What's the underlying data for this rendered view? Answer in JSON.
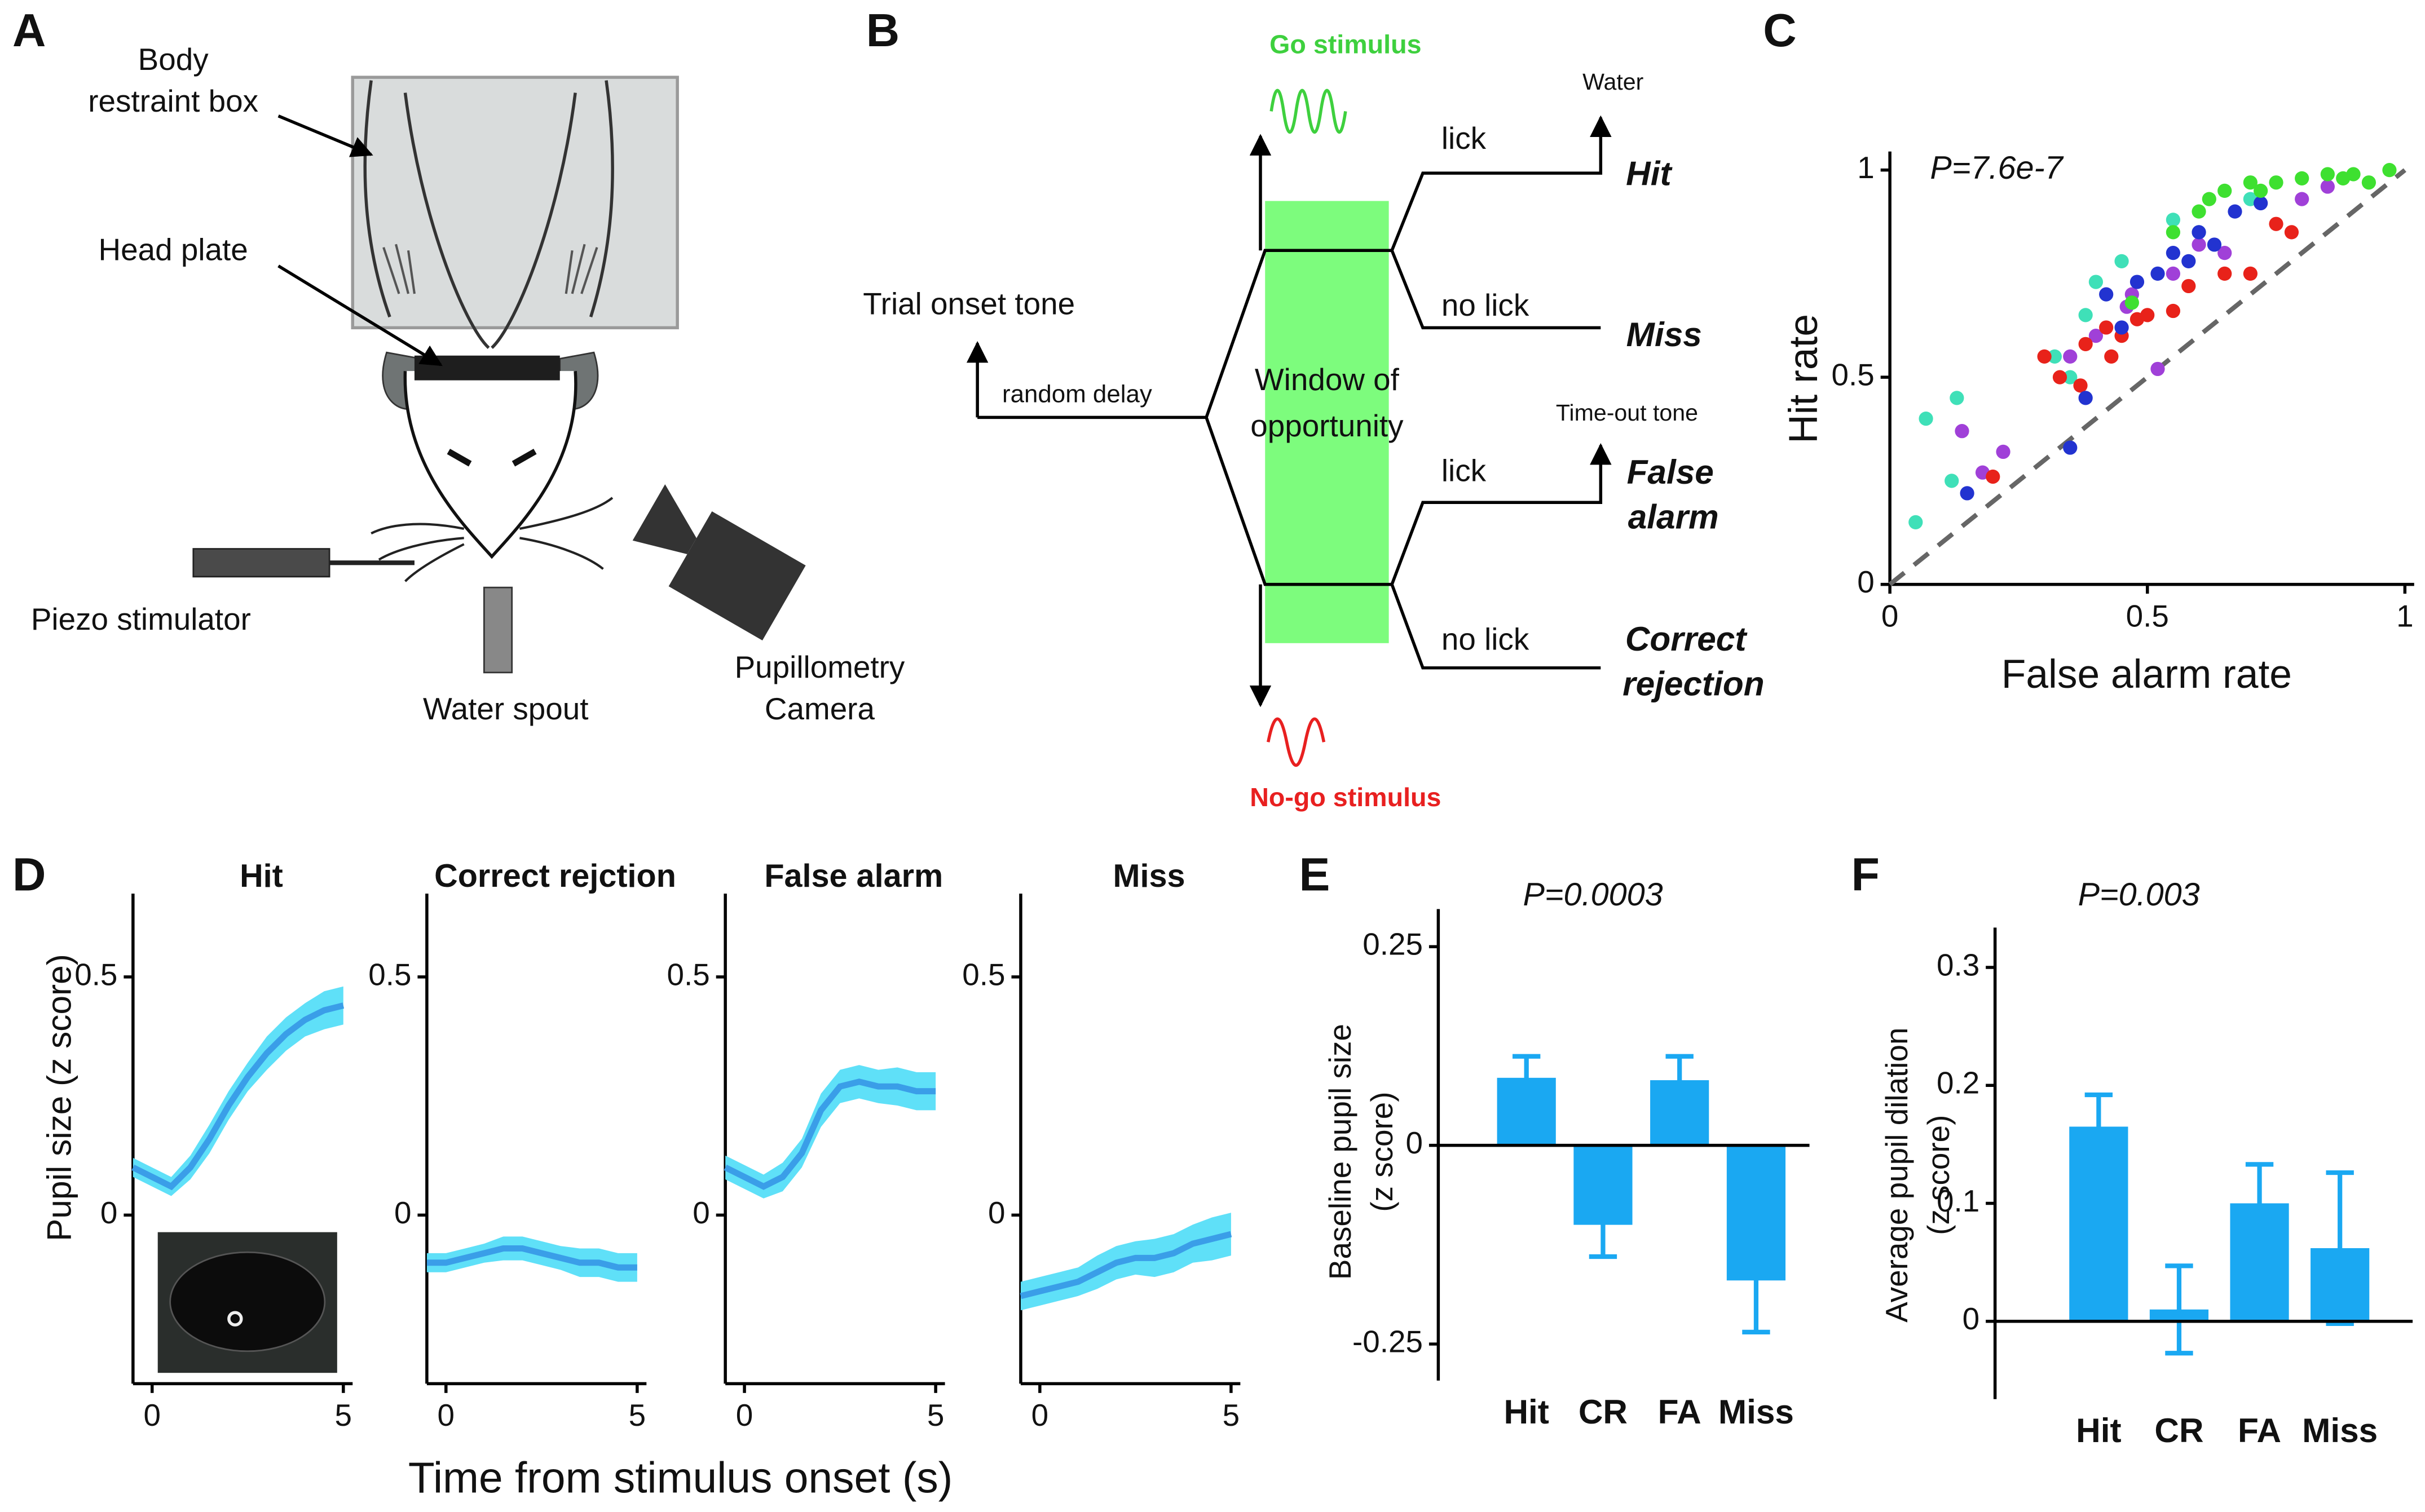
{
  "panel_a": {
    "label": "A",
    "body_box": [
      "Body",
      "restraint box"
    ],
    "head_plate": "Head plate",
    "piezo": "Piezo stimulator",
    "water_spout": "Water spout",
    "camera": [
      "Pupillometry",
      "Camera"
    ]
  },
  "panel_b": {
    "label": "B",
    "go": "Go stimulus",
    "nogo": "No-go stimulus",
    "trial_onset": "Trial onset tone",
    "delay": "random delay",
    "window": [
      "Window of",
      "opportunity"
    ],
    "lick_go": "lick",
    "nolick_go": "no lick",
    "lick_nogo": "lick",
    "nolick_nogo": "no lick",
    "water": "Water",
    "hit": "Hit",
    "miss": "Miss",
    "timeout": "Time-out tone",
    "false_alarm": [
      "False",
      "alarm"
    ],
    "correct_rejection": [
      "Correct",
      "rejection"
    ]
  },
  "chart_data": [
    {
      "type": "scatter",
      "label": "C",
      "annotation": "P=7.6e-7",
      "xlabel": "False alarm rate",
      "ylabel": "Hit rate",
      "xlim": [
        0,
        1
      ],
      "ylim": [
        0,
        1
      ],
      "xticks": [
        0,
        0.5,
        1
      ],
      "yticks": [
        0,
        0.5,
        1
      ],
      "series": [
        {
          "color": "#3fe0b8",
          "x": [
            0.05,
            0.07,
            0.13,
            0.12,
            0.32,
            0.35,
            0.4,
            0.45,
            0.55,
            0.6,
            0.38,
            0.7
          ],
          "values": [
            0.15,
            0.4,
            0.45,
            0.25,
            0.55,
            0.5,
            0.73,
            0.78,
            0.88,
            0.85,
            0.65,
            0.93
          ]
        },
        {
          "color": "#a040d8",
          "x": [
            0.14,
            0.18,
            0.22,
            0.35,
            0.4,
            0.47,
            0.55,
            0.6,
            0.65,
            0.8,
            0.85,
            0.52,
            0.46
          ],
          "values": [
            0.37,
            0.27,
            0.32,
            0.55,
            0.6,
            0.7,
            0.75,
            0.82,
            0.8,
            0.93,
            0.96,
            0.52,
            0.67
          ]
        },
        {
          "color": "#e8221a",
          "x": [
            0.2,
            0.3,
            0.33,
            0.38,
            0.42,
            0.45,
            0.48,
            0.5,
            0.55,
            0.58,
            0.65,
            0.7,
            0.75,
            0.78,
            0.37,
            0.43
          ],
          "values": [
            0.26,
            0.55,
            0.5,
            0.58,
            0.62,
            0.6,
            0.64,
            0.65,
            0.66,
            0.72,
            0.75,
            0.75,
            0.87,
            0.85,
            0.48,
            0.55
          ]
        },
        {
          "color": "#2233d0",
          "x": [
            0.15,
            0.35,
            0.38,
            0.42,
            0.48,
            0.52,
            0.55,
            0.6,
            0.63,
            0.67,
            0.72,
            0.58,
            0.45
          ],
          "values": [
            0.22,
            0.33,
            0.45,
            0.7,
            0.73,
            0.75,
            0.8,
            0.85,
            0.82,
            0.9,
            0.92,
            0.78,
            0.62
          ]
        },
        {
          "color": "#3ee030",
          "x": [
            0.47,
            0.55,
            0.6,
            0.65,
            0.7,
            0.75,
            0.8,
            0.85,
            0.9,
            0.93,
            0.97,
            0.62,
            0.72,
            0.88
          ],
          "values": [
            0.68,
            0.85,
            0.9,
            0.95,
            0.97,
            0.97,
            0.98,
            0.99,
            0.99,
            0.97,
            1.0,
            0.93,
            0.95,
            0.98
          ]
        }
      ]
    },
    {
      "type": "line",
      "label": "D",
      "title": "Hit",
      "xlabel": "Time from stimulus onset (s)",
      "ylabel": "Pupil size (z score)",
      "xlim": [
        -0.5,
        5
      ],
      "ylim": [
        -0.354,
        0.636
      ],
      "xticks": [
        0,
        5
      ],
      "yticks": [
        0,
        0.5
      ],
      "color": "#3a9ee8",
      "band_color": "#5fe0f8",
      "x": [
        -0.5,
        0,
        0.5,
        1,
        1.5,
        2,
        2.5,
        3,
        3.5,
        4,
        4.5,
        5
      ],
      "values": [
        0.1,
        0.08,
        0.06,
        0.1,
        0.16,
        0.23,
        0.29,
        0.34,
        0.38,
        0.41,
        0.43,
        0.44
      ],
      "error": [
        0.02,
        0.02,
        0.02,
        0.025,
        0.03,
        0.03,
        0.03,
        0.035,
        0.035,
        0.035,
        0.04,
        0.04
      ]
    },
    {
      "type": "line",
      "title": "Correct rejction",
      "xlim": [
        -0.5,
        5
      ],
      "ylim": [
        -0.354,
        0.636
      ],
      "xticks": [
        0,
        5
      ],
      "yticks": [
        0,
        0.5
      ],
      "color": "#3a9ee8",
      "band_color": "#5fe0f8",
      "x": [
        -0.5,
        0,
        0.5,
        1,
        1.5,
        2,
        2.5,
        3,
        3.5,
        4,
        4.5,
        5
      ],
      "values": [
        -0.1,
        -0.1,
        -0.09,
        -0.08,
        -0.07,
        -0.07,
        -0.08,
        -0.09,
        -0.1,
        -0.1,
        -0.11,
        -0.11
      ],
      "error": [
        0.02,
        0.02,
        0.02,
        0.02,
        0.025,
        0.025,
        0.025,
        0.025,
        0.03,
        0.03,
        0.03,
        0.03
      ]
    },
    {
      "type": "line",
      "title": "False alarm",
      "xlim": [
        -0.5,
        5
      ],
      "ylim": [
        -0.354,
        0.636
      ],
      "xticks": [
        0,
        5
      ],
      "yticks": [
        0,
        0.5
      ],
      "color": "#3a9ee8",
      "band_color": "#5fe0f8",
      "x": [
        -0.5,
        0,
        0.5,
        1,
        1.5,
        2,
        2.5,
        3,
        3.5,
        4,
        4.5,
        5
      ],
      "values": [
        0.1,
        0.08,
        0.06,
        0.08,
        0.13,
        0.22,
        0.27,
        0.28,
        0.27,
        0.27,
        0.26,
        0.26
      ],
      "error": [
        0.025,
        0.025,
        0.025,
        0.03,
        0.03,
        0.035,
        0.035,
        0.035,
        0.035,
        0.04,
        0.04,
        0.04
      ]
    },
    {
      "type": "line",
      "title": "Miss",
      "xlim": [
        -0.5,
        5
      ],
      "ylim": [
        -0.354,
        0.636
      ],
      "xticks": [
        0,
        5
      ],
      "yticks": [
        0,
        0.5
      ],
      "color": "#3a9ee8",
      "band_color": "#5fe0f8",
      "x": [
        -0.5,
        0,
        0.5,
        1,
        1.5,
        2,
        2.5,
        3,
        3.5,
        4,
        4.5,
        5
      ],
      "values": [
        -0.17,
        -0.16,
        -0.15,
        -0.14,
        -0.12,
        -0.1,
        -0.09,
        -0.09,
        -0.08,
        -0.06,
        -0.05,
        -0.04
      ],
      "error": [
        0.03,
        0.03,
        0.03,
        0.03,
        0.035,
        0.035,
        0.035,
        0.04,
        0.04,
        0.04,
        0.045,
        0.045
      ]
    },
    {
      "type": "bar",
      "label": "E",
      "annotation": "P=0.0003",
      "ylabel": [
        "Baseline pupil size",
        "(z score)"
      ],
      "ylim": [
        -0.296,
        0.274
      ],
      "yticks": [
        0.25,
        0,
        -0.25
      ],
      "color": "#1aa8f2",
      "categories": [
        "Hit",
        "CR",
        "FA",
        "Miss"
      ],
      "values": [
        0.085,
        -0.1,
        0.082,
        -0.17
      ],
      "error": [
        0.027,
        0.04,
        0.03,
        0.065
      ]
    },
    {
      "type": "bar",
      "label": "F",
      "annotation": "P=0.003",
      "ylabel": [
        "Average pupil dilation",
        "(z score)"
      ],
      "ylim": [
        -0.066,
        0.318
      ],
      "yticks": [
        0,
        0.1,
        0.2,
        0.3
      ],
      "color": "#1aa8f2",
      "categories": [
        "Hit",
        "CR",
        "FA",
        "Miss"
      ],
      "values": [
        0.165,
        0.01,
        0.1,
        0.062
      ],
      "error": [
        0.027,
        0.037,
        0.033,
        0.064
      ]
    }
  ]
}
